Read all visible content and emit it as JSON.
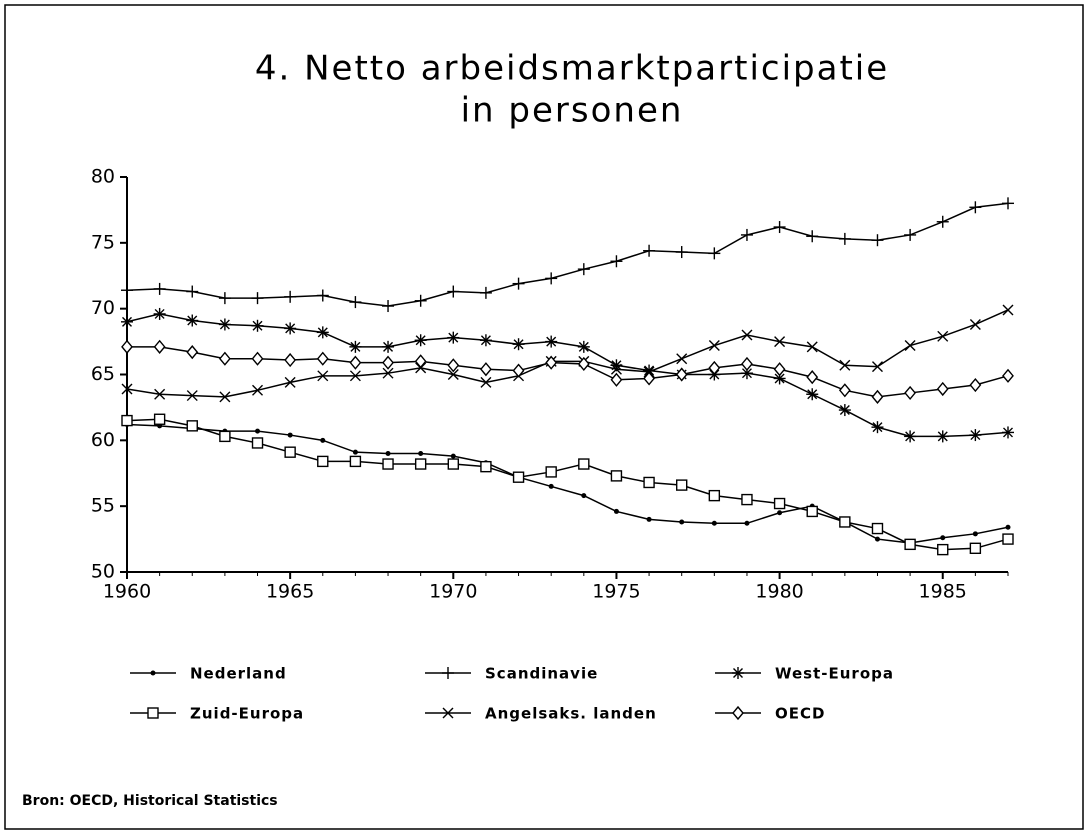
{
  "chart_data": {
    "type": "line",
    "title": [
      "4. Netto arbeidsmarktparticipatie",
      "in personen"
    ],
    "x": [
      1960,
      1961,
      1962,
      1963,
      1964,
      1965,
      1966,
      1967,
      1968,
      1969,
      1970,
      1971,
      1972,
      1973,
      1974,
      1975,
      1976,
      1977,
      1978,
      1979,
      1980,
      1981,
      1982,
      1983,
      1984,
      1985,
      1986,
      1987
    ],
    "xlim": [
      1960,
      1987
    ],
    "xticks": [
      1960,
      1965,
      1970,
      1975,
      1980,
      1985
    ],
    "ylim": [
      50,
      80
    ],
    "yticks": [
      50,
      55,
      60,
      65,
      70,
      75,
      80
    ],
    "grid": false,
    "series": [
      {
        "name": "Nederland",
        "color": "#000000",
        "marker": "dot",
        "values": [
          61.2,
          61.1,
          60.9,
          60.7,
          60.7,
          60.4,
          60.0,
          59.1,
          59.0,
          59.0,
          58.8,
          58.3,
          57.2,
          56.5,
          55.8,
          54.6,
          54.0,
          53.8,
          53.7,
          53.7,
          54.5,
          55.0,
          53.8,
          52.5,
          52.2,
          52.6,
          52.9,
          53.4
        ]
      },
      {
        "name": "Scandinavie",
        "color": "#000000",
        "marker": "plus",
        "values": [
          71.4,
          71.5,
          71.3,
          70.8,
          70.8,
          70.9,
          71.0,
          70.5,
          70.2,
          70.6,
          71.3,
          71.2,
          71.9,
          72.3,
          73.0,
          73.6,
          74.4,
          74.3,
          74.2,
          75.6,
          76.2,
          75.5,
          75.3,
          75.2,
          75.6,
          76.6,
          77.7,
          78.0
        ]
      },
      {
        "name": "West-Europa",
        "color": "#000000",
        "marker": "star",
        "values": [
          69.0,
          69.6,
          69.1,
          68.8,
          68.7,
          68.5,
          68.2,
          67.1,
          67.1,
          67.6,
          67.8,
          67.6,
          67.3,
          67.5,
          67.1,
          65.7,
          65.3,
          65.0,
          65.0,
          65.1,
          64.7,
          63.5,
          62.3,
          61.0,
          60.3,
          60.3,
          60.4,
          60.6
        ]
      },
      {
        "name": "Zuid-Europa",
        "color": "#000000",
        "marker": "square",
        "values": [
          61.5,
          61.6,
          61.1,
          60.3,
          59.8,
          59.1,
          58.4,
          58.4,
          58.2,
          58.2,
          58.2,
          58.0,
          57.2,
          57.6,
          58.2,
          57.3,
          56.8,
          56.6,
          55.8,
          55.5,
          55.2,
          54.6,
          53.8,
          53.3,
          52.1,
          51.7,
          51.8,
          52.5
        ]
      },
      {
        "name": "Angelsaks. landen",
        "color": "#000000",
        "marker": "cross",
        "values": [
          63.9,
          63.5,
          63.4,
          63.3,
          63.8,
          64.4,
          64.9,
          64.9,
          65.1,
          65.5,
          65.0,
          64.4,
          64.9,
          66.0,
          66.0,
          65.4,
          65.2,
          66.2,
          67.2,
          68.0,
          67.5,
          67.1,
          65.7,
          65.6,
          67.2,
          67.9,
          68.8,
          69.9
        ]
      },
      {
        "name": "OECD",
        "color": "#000000",
        "marker": "diamond",
        "values": [
          67.1,
          67.1,
          66.7,
          66.2,
          66.2,
          66.1,
          66.2,
          65.9,
          65.9,
          66.0,
          65.7,
          65.4,
          65.3,
          65.9,
          65.8,
          64.6,
          64.7,
          65.0,
          65.5,
          65.8,
          65.4,
          64.8,
          63.8,
          63.3,
          63.6,
          63.9,
          64.2,
          64.9
        ]
      }
    ],
    "source": "Bron: OECD, Historical Statistics"
  }
}
